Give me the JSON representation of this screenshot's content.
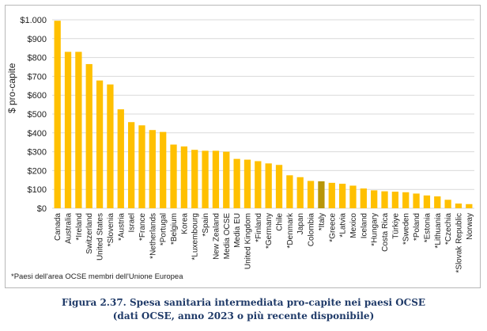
{
  "chart_data": {
    "type": "bar",
    "ylabel": "$ pro-capite",
    "ylim": [
      0,
      1000
    ],
    "yticks": [
      0,
      100,
      200,
      300,
      400,
      500,
      600,
      700,
      800,
      900,
      1000
    ],
    "ytick_labels": [
      "$0",
      "$100",
      "$200",
      "$300",
      "$400",
      "$500",
      "$600",
      "$700",
      "$800",
      "$900",
      "$1.000"
    ],
    "categories": [
      "Canada",
      "Australia",
      "*Ireland",
      "Switzerland",
      "United States",
      "*Slovenia",
      "*Austria",
      "Israel",
      "*France",
      "*Netherlands",
      "*Portugal",
      "*Belgium",
      "Korea",
      "*Luxembourg",
      "*Spain",
      "New Zealand",
      "Media OCSE",
      "Media EU",
      "United Kingdom",
      "*Finland",
      "*Germany",
      "Chile",
      "*Denmark",
      "Japan",
      "Colombia",
      "*Italy",
      "*Greece",
      "*Latvia",
      "Mexico",
      "Iceland",
      "*Hungary",
      "Costa Rica",
      "Türkiye",
      "*Sweden",
      "*Poland",
      "*Estonia",
      "*Lithuania",
      "*Czechia",
      "*Slovak Republic",
      "Norway"
    ],
    "values": [
      995,
      830,
      830,
      765,
      678,
      657,
      525,
      457,
      440,
      415,
      405,
      338,
      328,
      310,
      305,
      305,
      300,
      262,
      258,
      250,
      238,
      230,
      175,
      165,
      145,
      143,
      135,
      130,
      120,
      105,
      95,
      90,
      88,
      85,
      78,
      68,
      63,
      45,
      25,
      22
    ],
    "highlight_category": "*Italy",
    "colors": {
      "bar": "#FFC000",
      "highlight": "#B8960A",
      "grid": "#d9d9d9"
    },
    "grid": true,
    "legend": "none"
  },
  "footnote": "*Paesi dell'area OCSE membri dell'Unione Europea",
  "caption": {
    "line1": "Figura 2.37. Spesa sanitaria intermediata pro-capite nei paesi OCSE",
    "line2": "(dati OCSE, anno 2023 o più recente disponibile)"
  }
}
